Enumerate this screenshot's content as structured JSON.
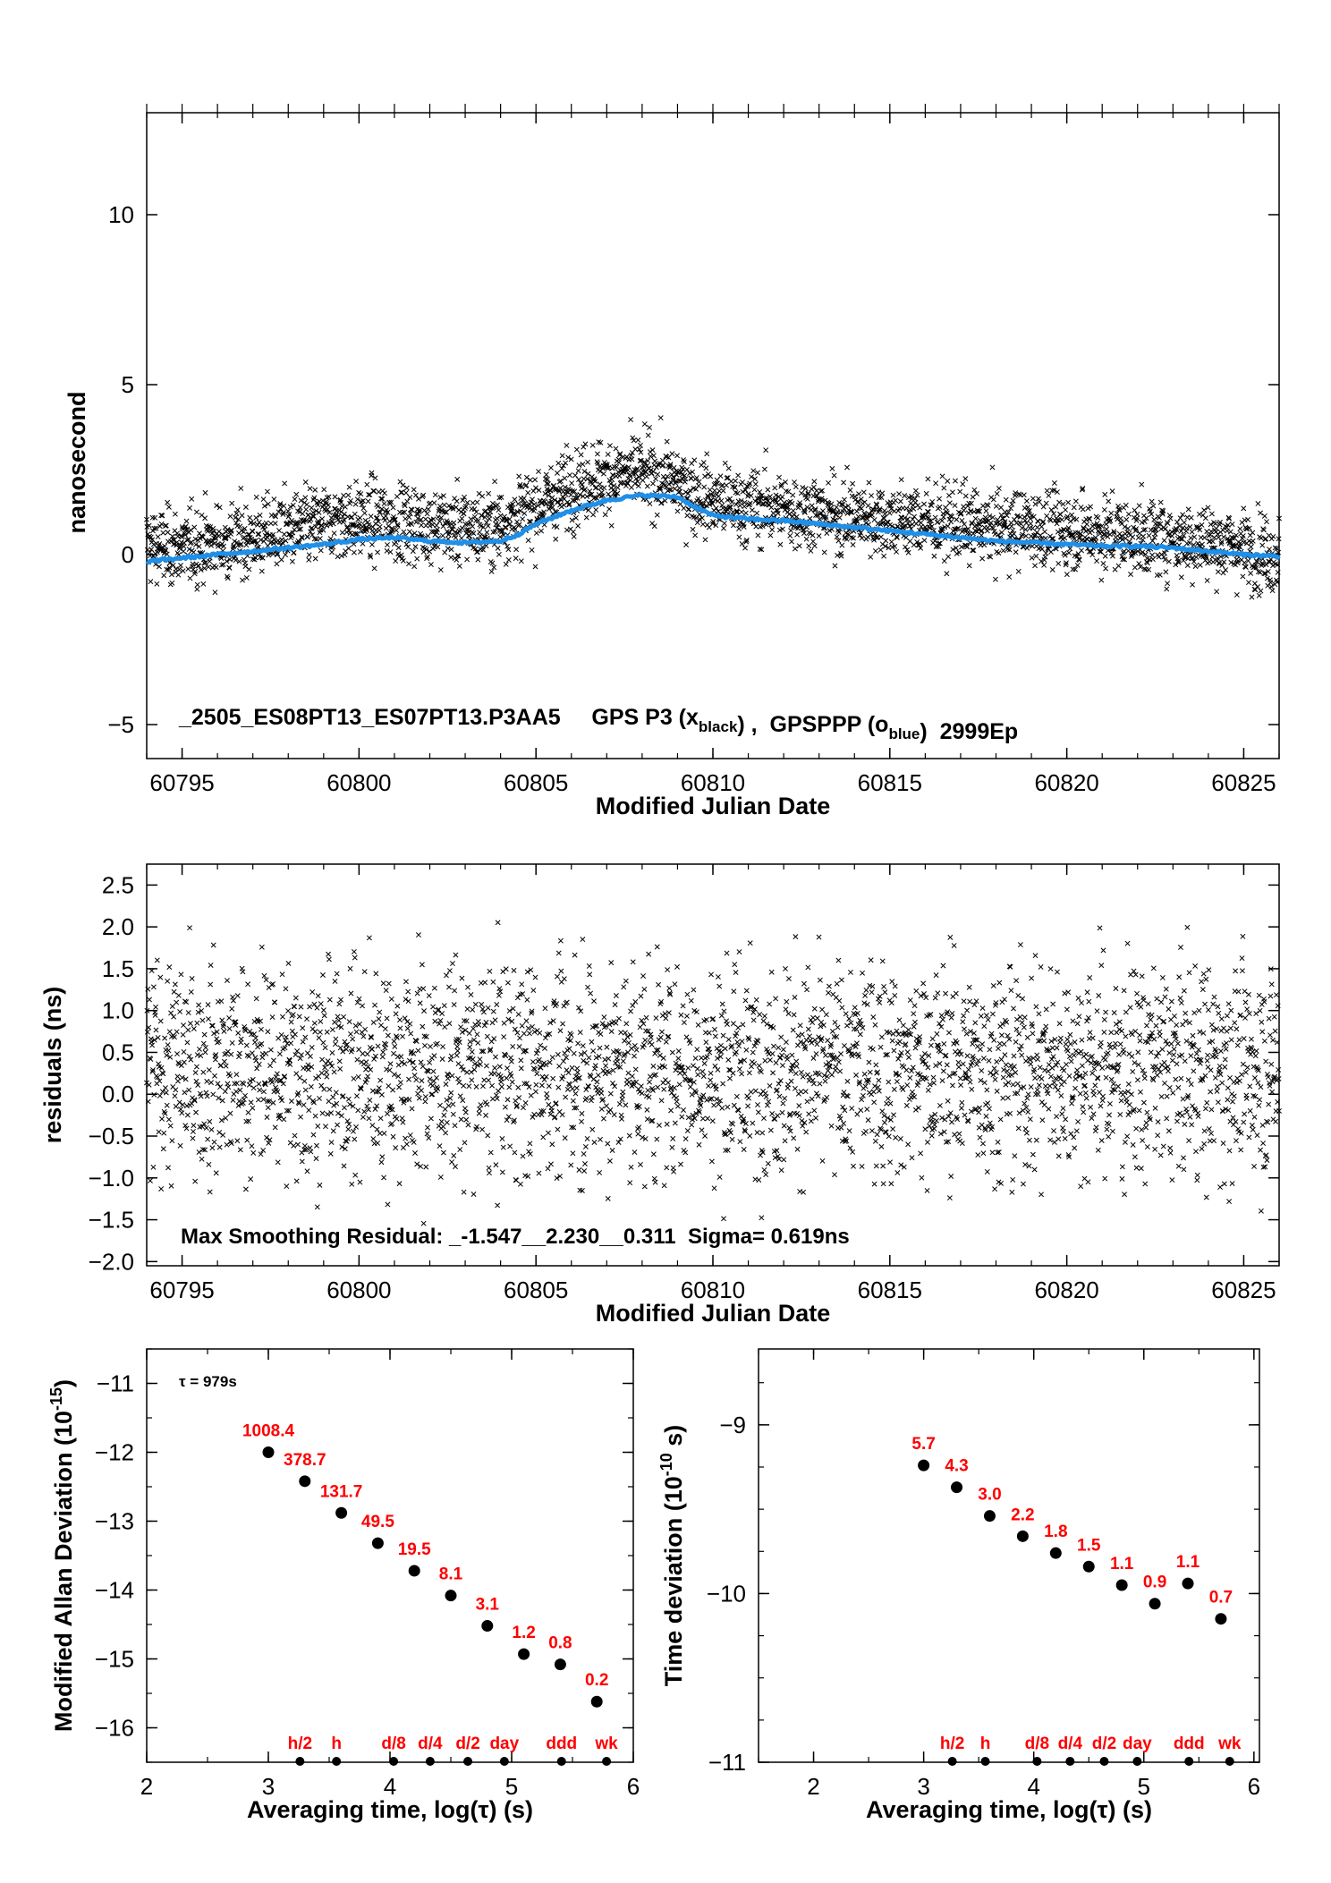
{
  "colors": {
    "axis": "#000000",
    "black_series": "#000000",
    "blue_series": "#1f8fe8",
    "labels_red": "#ff0000"
  },
  "chart_data": [
    {
      "type": "scatter",
      "xlabel": "Modified Julian Date",
      "ylabel": "nanosecond",
      "annotation": "_2505_ES08PT13_ES07PT13.P3AA5     GPS P3 (x",
      "annotation_sub1": "black",
      "annotation_mid": ") ,  GPSPPP (o",
      "annotation_sub2": "blue",
      "annotation_end": ")  2999Ep",
      "xlim": [
        60794,
        60826
      ],
      "ylim": [
        -6,
        13
      ],
      "xticks": [
        "60795",
        "60800",
        "60805",
        "60810",
        "60815",
        "60820",
        "60825"
      ],
      "yticks": [
        "−5",
        "0",
        "5",
        "10"
      ],
      "xtick_values": [
        60795,
        60800,
        60805,
        60810,
        60815,
        60820,
        60825
      ],
      "ytick_values": [
        -5,
        0,
        5,
        10
      ],
      "series": [
        {
          "name": "GPS P3",
          "marker": "x",
          "color": "#000000",
          "values_description_only": false,
          "x": [
            60794,
            60794.5,
            60795,
            60795.5,
            60796,
            60796.5,
            60797,
            60797.5,
            60798,
            60798.5,
            60799,
            60799.5,
            60800,
            60800.5,
            60801,
            60801.5,
            60802,
            60802.5,
            60803,
            60803.5,
            60804,
            60804.5,
            60805,
            60805.5,
            60806,
            60806.5,
            60807,
            60807.5,
            60808,
            60808.5,
            60809,
            60809.5,
            60810,
            60810.5,
            60811,
            60811.5,
            60812,
            60812.5,
            60813,
            60813.5,
            60814,
            60814.5,
            60815,
            60815.5,
            60816,
            60816.5,
            60817,
            60817.5,
            60818,
            60818.5,
            60819,
            60819.5,
            60820,
            60820.5,
            60821,
            60821.5,
            60822,
            60822.5,
            60823,
            60823.5,
            60824,
            60824.5,
            60825,
            60825.5,
            60826
          ],
          "y": [
            0.3,
            0.2,
            0.2,
            0.3,
            0.3,
            0.4,
            0.5,
            0.6,
            0.7,
            0.8,
            0.9,
            1.0,
            1.0,
            1.0,
            1.0,
            0.9,
            0.9,
            0.8,
            0.8,
            0.8,
            0.9,
            1.1,
            1.4,
            1.7,
            2.0,
            2.2,
            2.3,
            2.4,
            2.4,
            2.3,
            2.1,
            1.8,
            1.6,
            1.5,
            1.4,
            1.4,
            1.3,
            1.3,
            1.2,
            1.1,
            1.1,
            1.1,
            1.0,
            1.0,
            1.0,
            0.9,
            0.9,
            0.8,
            0.8,
            0.8,
            0.8,
            0.7,
            0.7,
            0.7,
            0.6,
            0.6,
            0.5,
            0.5,
            0.5,
            0.4,
            0.4,
            0.3,
            0.2,
            0.1,
            0.0
          ]
        },
        {
          "name": "GPSPPP",
          "marker": "o",
          "color": "#1f8fe8",
          "x": [
            60794,
            60795,
            60796,
            60797,
            60798,
            60799,
            60800,
            60801,
            60802,
            60803,
            60804,
            60804.5,
            60805,
            60806,
            60807,
            60808,
            60809,
            60809.5,
            60810,
            60811,
            60812,
            60813,
            60814,
            60815,
            60816,
            60817,
            60818,
            60819,
            60820,
            60821,
            60822,
            60823,
            60824,
            60825,
            60826
          ],
          "y": [
            -0.2,
            -0.1,
            0.0,
            0.1,
            0.2,
            0.3,
            0.45,
            0.5,
            0.4,
            0.35,
            0.4,
            0.6,
            0.9,
            1.3,
            1.6,
            1.75,
            1.7,
            1.4,
            1.15,
            1.05,
            1.0,
            0.9,
            0.8,
            0.7,
            0.6,
            0.5,
            0.4,
            0.35,
            0.3,
            0.25,
            0.25,
            0.2,
            0.1,
            0.0,
            -0.05
          ]
        }
      ]
    },
    {
      "type": "scatter",
      "xlabel": "Modified Julian Date",
      "ylabel": "residuals (ns)",
      "annotation": "Max Smoothing Residual: _-1.547__2.230__0.311  Sigma= 0.619ns",
      "xlim": [
        60794,
        60826
      ],
      "ylim": [
        -2.05,
        2.75
      ],
      "xticks": [
        "60795",
        "60800",
        "60805",
        "60810",
        "60815",
        "60820",
        "60825"
      ],
      "yticks": [
        "−2.0",
        "−1.5",
        "−1.0",
        "−0.5",
        "0.0",
        "0.5",
        "1.0",
        "1.5",
        "2.0",
        "2.5"
      ],
      "xtick_values": [
        60795,
        60800,
        60805,
        60810,
        60815,
        60820,
        60825
      ],
      "ytick_values": [
        -2.0,
        -1.5,
        -1.0,
        -0.5,
        0.0,
        0.5,
        1.0,
        1.5,
        2.0,
        2.5
      ],
      "series": [
        {
          "name": "",
          "marker": "x",
          "color": "#000000",
          "min": -1.547,
          "max": 2.23,
          "mean": 0.311,
          "sigma": 0.619
        }
      ]
    },
    {
      "type": "scatter",
      "xlabel": "Averaging time, log(τ) (s)",
      "ylabel": "Modified Allan Deviation (10",
      "ylabel_sup": "-15",
      "ylabel_end": ")",
      "tau_label": "τ = 979s",
      "xlim": [
        2,
        6
      ],
      "ylim": [
        -16.5,
        -10.5
      ],
      "xticks": [
        "2",
        "3",
        "4",
        "5",
        "6"
      ],
      "yticks": [
        "−11",
        "−12",
        "−13",
        "−14",
        "−15",
        "−16"
      ],
      "xtick_values": [
        2,
        3,
        4,
        5,
        6
      ],
      "ytick_values": [
        -11,
        -12,
        -13,
        -14,
        -15,
        -16
      ],
      "points": [
        {
          "x": 3.0,
          "y": -12.0,
          "label": "1008.4"
        },
        {
          "x": 3.3,
          "y": -12.42,
          "label": "378.7"
        },
        {
          "x": 3.6,
          "y": -12.88,
          "label": "131.7"
        },
        {
          "x": 3.9,
          "y": -13.32,
          "label": "49.5"
        },
        {
          "x": 4.2,
          "y": -13.72,
          "label": "19.5"
        },
        {
          "x": 4.5,
          "y": -14.08,
          "label": "8.1"
        },
        {
          "x": 4.8,
          "y": -14.52,
          "label": "3.1"
        },
        {
          "x": 5.1,
          "y": -14.93,
          "label": "1.2"
        },
        {
          "x": 5.4,
          "y": -15.08,
          "label": "0.8"
        },
        {
          "x": 5.7,
          "y": -15.62,
          "label": "0.2"
        }
      ],
      "markers": [
        {
          "x": 3.26,
          "label": "h/2"
        },
        {
          "x": 3.56,
          "label": "h"
        },
        {
          "x": 4.03,
          "label": "d/8"
        },
        {
          "x": 4.33,
          "label": "d/4"
        },
        {
          "x": 4.64,
          "label": "d/2"
        },
        {
          "x": 4.94,
          "label": "day"
        },
        {
          "x": 5.41,
          "label": "ddd"
        },
        {
          "x": 5.78,
          "label": "wk"
        }
      ]
    },
    {
      "type": "scatter",
      "xlabel": "Averaging time, log(τ) (s)",
      "ylabel": "Time deviation (10",
      "ylabel_sup": "-10",
      "ylabel_end": " s)",
      "xlim": [
        1.5,
        6.05
      ],
      "ylim": [
        -11.0,
        -8.55
      ],
      "xticks": [
        "2",
        "3",
        "4",
        "5",
        "6"
      ],
      "yticks": [
        "−9",
        "−10",
        "−11"
      ],
      "xtick_values": [
        2,
        3,
        4,
        5,
        6
      ],
      "ytick_values": [
        -9,
        -10,
        -11
      ],
      "points": [
        {
          "x": 3.0,
          "y": -9.24,
          "label": "5.7"
        },
        {
          "x": 3.3,
          "y": -9.37,
          "label": "4.3"
        },
        {
          "x": 3.6,
          "y": -9.54,
          "label": "3.0"
        },
        {
          "x": 3.9,
          "y": -9.66,
          "label": "2.2"
        },
        {
          "x": 4.2,
          "y": -9.76,
          "label": "1.8"
        },
        {
          "x": 4.5,
          "y": -9.84,
          "label": "1.5"
        },
        {
          "x": 4.8,
          "y": -9.95,
          "label": "1.1"
        },
        {
          "x": 5.1,
          "y": -10.06,
          "label": "0.9"
        },
        {
          "x": 5.4,
          "y": -9.94,
          "label": "1.1"
        },
        {
          "x": 5.7,
          "y": -10.15,
          "label": "0.7"
        }
      ],
      "markers": [
        {
          "x": 3.26,
          "label": "h/2"
        },
        {
          "x": 3.56,
          "label": "h"
        },
        {
          "x": 4.03,
          "label": "d/8"
        },
        {
          "x": 4.33,
          "label": "d/4"
        },
        {
          "x": 4.64,
          "label": "d/2"
        },
        {
          "x": 4.94,
          "label": "day"
        },
        {
          "x": 5.41,
          "label": "ddd"
        },
        {
          "x": 5.78,
          "label": "wk"
        }
      ]
    }
  ]
}
